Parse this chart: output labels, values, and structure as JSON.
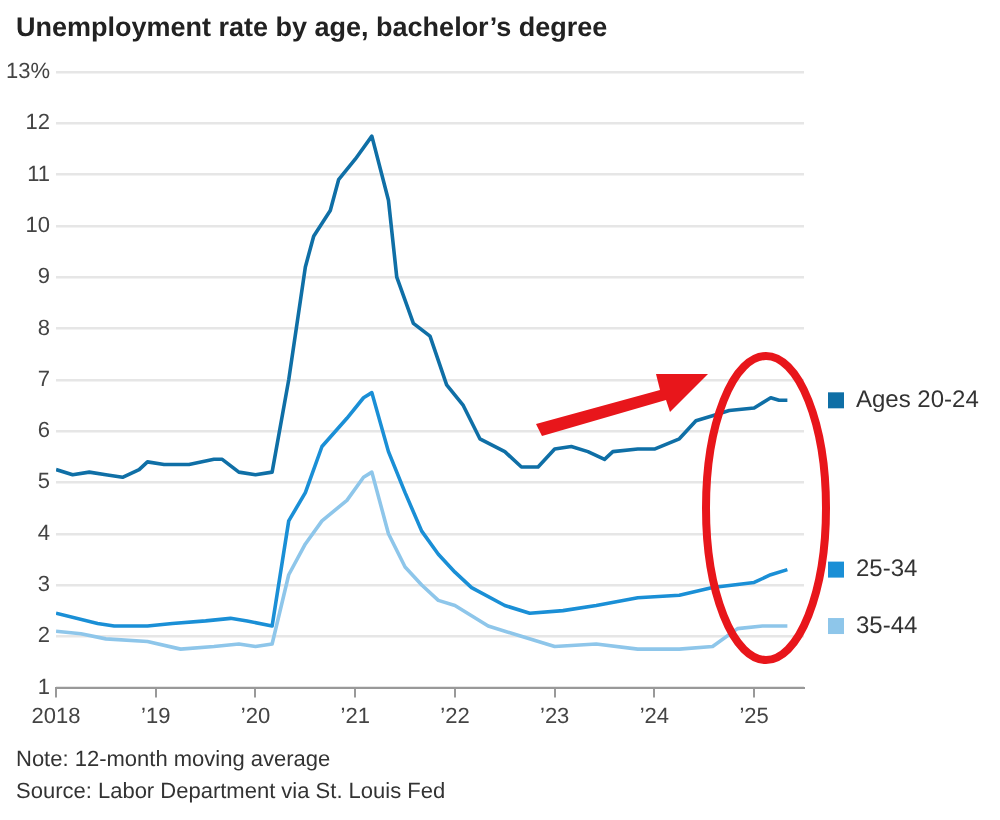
{
  "chart_data": {
    "type": "line",
    "title": "Unemployment rate by age, bachelor’s degree",
    "annotations": [
      "Note: 12-month moving average",
      "Source: Labor Department via St. Louis Fed"
    ],
    "xlim": [
      "2018-01",
      "2025-07"
    ],
    "xticks": [
      {
        "value": "2018-01",
        "label": "2018"
      },
      {
        "value": "2019-01",
        "label": "’19"
      },
      {
        "value": "2020-01",
        "label": "’20"
      },
      {
        "value": "2021-01",
        "label": "’21"
      },
      {
        "value": "2022-01",
        "label": "’22"
      },
      {
        "value": "2023-01",
        "label": "’23"
      },
      {
        "value": "2024-01",
        "label": "’24"
      },
      {
        "value": "2025-01",
        "label": "’25"
      }
    ],
    "ylim": [
      1,
      13
    ],
    "yticks": [
      1,
      2,
      3,
      4,
      5,
      6,
      7,
      8,
      9,
      10,
      11,
      12,
      {
        "value": 13,
        "label": "13%"
      }
    ],
    "grid": "y",
    "legend": "right",
    "marker": "none",
    "line_style": "solid",
    "series": [
      {
        "name": "Ages 20-24",
        "color": "#0f6fa6",
        "x": [
          "2018-01",
          "2018-03",
          "2018-05",
          "2018-07",
          "2018-09",
          "2018-11",
          "2018-12",
          "2019-02",
          "2019-05",
          "2019-08",
          "2019-09",
          "2019-11",
          "2020-01",
          "2020-03",
          "2020-05",
          "2020-07",
          "2020-08",
          "2020-10",
          "2020-11",
          "2021-01",
          "2021-03",
          "2021-05",
          "2021-06",
          "2021-08",
          "2021-10",
          "2021-12",
          "2022-02",
          "2022-04",
          "2022-07",
          "2022-09",
          "2022-11",
          "2023-01",
          "2023-03",
          "2023-05",
          "2023-07",
          "2023-08",
          "2023-11",
          "2024-01",
          "2024-04",
          "2024-06",
          "2024-08",
          "2024-10",
          "2025-01",
          "2025-03",
          "2025-04",
          "2025-05"
        ],
        "values": [
          5.25,
          5.15,
          5.2,
          5.15,
          5.1,
          5.25,
          5.4,
          5.35,
          5.35,
          5.45,
          5.45,
          5.2,
          5.15,
          5.2,
          7.0,
          9.2,
          9.8,
          10.3,
          10.9,
          11.3,
          11.75,
          10.5,
          9.0,
          8.1,
          7.85,
          6.9,
          6.5,
          5.85,
          5.6,
          5.3,
          5.3,
          5.65,
          5.7,
          5.6,
          5.45,
          5.6,
          5.65,
          5.65,
          5.85,
          6.2,
          6.3,
          6.4,
          6.45,
          6.65,
          6.6,
          6.6
        ]
      },
      {
        "name": "25-34",
        "color": "#1a8fd6",
        "x": [
          "2018-01",
          "2018-06",
          "2018-08",
          "2018-12",
          "2019-03",
          "2019-07",
          "2019-10",
          "2019-12",
          "2020-03",
          "2020-05",
          "2020-07",
          "2020-09",
          "2020-12",
          "2021-02",
          "2021-03",
          "2021-05",
          "2021-07",
          "2021-09",
          "2021-11",
          "2022-01",
          "2022-03",
          "2022-07",
          "2022-10",
          "2023-02",
          "2023-06",
          "2023-11",
          "2024-04",
          "2024-08",
          "2025-01",
          "2025-03",
          "2025-05"
        ],
        "values": [
          2.45,
          2.25,
          2.2,
          2.2,
          2.25,
          2.3,
          2.35,
          2.3,
          2.2,
          4.25,
          4.8,
          5.7,
          6.25,
          6.65,
          6.75,
          5.6,
          4.8,
          4.05,
          3.6,
          3.25,
          2.95,
          2.6,
          2.45,
          2.5,
          2.6,
          2.75,
          2.8,
          2.95,
          3.05,
          3.2,
          3.3
        ]
      },
      {
        "name": "35-44",
        "color": "#8ec6ea",
        "x": [
          "2018-01",
          "2018-04",
          "2018-07",
          "2018-12",
          "2019-04",
          "2019-08",
          "2019-11",
          "2020-01",
          "2020-03",
          "2020-05",
          "2020-07",
          "2020-09",
          "2020-12",
          "2021-02",
          "2021-03",
          "2021-05",
          "2021-07",
          "2021-09",
          "2021-11",
          "2022-01",
          "2022-03",
          "2022-05",
          "2022-08",
          "2023-01",
          "2023-06",
          "2023-11",
          "2024-04",
          "2024-08",
          "2024-11",
          "2025-02",
          "2025-05"
        ],
        "values": [
          2.1,
          2.05,
          1.95,
          1.9,
          1.75,
          1.8,
          1.85,
          1.8,
          1.85,
          3.2,
          3.8,
          4.25,
          4.65,
          5.1,
          5.2,
          4.0,
          3.35,
          3.0,
          2.7,
          2.6,
          2.4,
          2.2,
          2.05,
          1.8,
          1.85,
          1.75,
          1.75,
          1.8,
          2.15,
          2.2,
          2.2
        ]
      }
    ]
  }
}
